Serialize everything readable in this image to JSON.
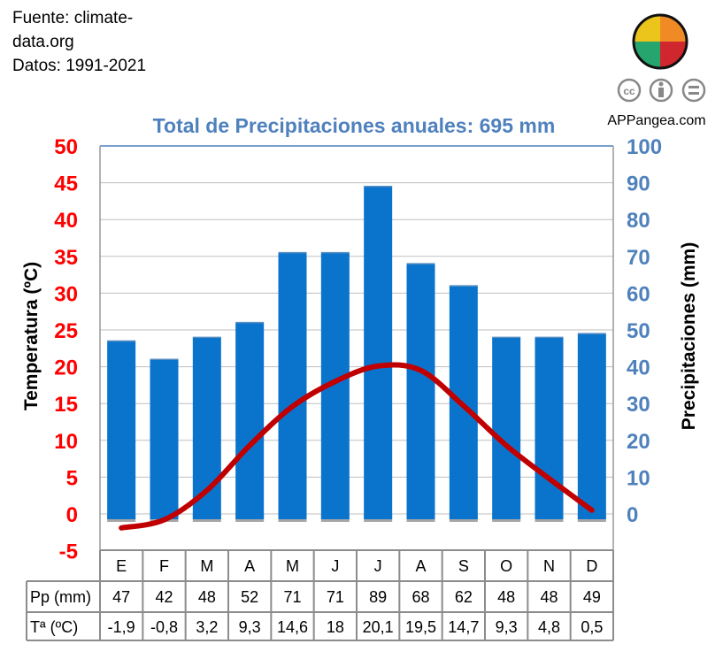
{
  "source": {
    "line1": "Fuente: climate-",
    "line2": "data.org",
    "line3": "Datos: 1991-2021"
  },
  "brand": {
    "site": "APPangea.com",
    "license_icons": [
      "cc-icon",
      "by-icon",
      "nd-icon"
    ]
  },
  "chart_data": {
    "type": "bar+line",
    "title": "Total de Precipitaciones anuales: 695 mm",
    "categories": [
      "E",
      "F",
      "M",
      "A",
      "M",
      "J",
      "J",
      "A",
      "S",
      "O",
      "N",
      "D"
    ],
    "series": [
      {
        "name": "Pp (mm)",
        "type": "bar",
        "axis": "right",
        "values": [
          47,
          42,
          48,
          52,
          71,
          71,
          89,
          68,
          62,
          48,
          48,
          49
        ],
        "color": "#0A74CC"
      },
      {
        "name": "Tª (ºC)",
        "type": "line",
        "axis": "left",
        "values": [
          -1.9,
          -0.8,
          3.2,
          9.3,
          14.6,
          18,
          20.1,
          19.5,
          14.7,
          9.3,
          4.8,
          0.5
        ],
        "color": "#C00000"
      }
    ],
    "table_values": {
      "pp": [
        "47",
        "42",
        "48",
        "52",
        "71",
        "71",
        "89",
        "68",
        "62",
        "48",
        "48",
        "49"
      ],
      "ta": [
        "-1,9",
        "-0,8",
        "3,2",
        "9,3",
        "14,6",
        "18",
        "20,1",
        "19,5",
        "14,7",
        "9,3",
        "4,8",
        "0,5"
      ]
    },
    "ylabel_left": "Temperatura (ºC)",
    "ylabel_right": "Precipitaciones (mm)",
    "ylim_left": [
      -5,
      50
    ],
    "ylim_right": [
      0,
      100
    ],
    "yticks_left": [
      "50",
      "45",
      "40",
      "35",
      "30",
      "25",
      "20",
      "15",
      "10",
      "5",
      "0",
      "-5"
    ],
    "yticks_right": [
      "100",
      "90",
      "80",
      "70",
      "60",
      "50",
      "40",
      "30",
      "20",
      "10",
      "0"
    ],
    "row_labels": {
      "pp": "Pp (mm)",
      "ta": "Tª (ºC)"
    },
    "grid": true,
    "colors": {
      "left_axis": "#FF0000",
      "right_axis": "#4F81BD",
      "title": "#4F81BD"
    }
  }
}
